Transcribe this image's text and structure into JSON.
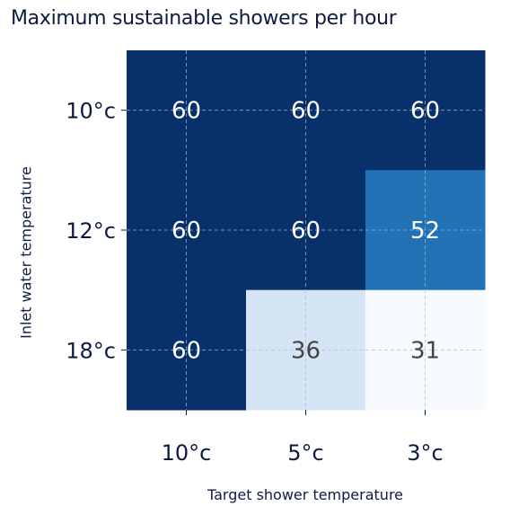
{
  "chart_data": {
    "type": "heatmap",
    "title": "Maximum sustainable showers per hour",
    "xlabel": "Target shower temperature",
    "ylabel": "Inlet water temperature",
    "x_categories": [
      "10°c",
      "5°c",
      "3°c"
    ],
    "y_categories": [
      "10°c",
      "12°c",
      "18°c"
    ],
    "values": [
      [
        60,
        60,
        60
      ],
      [
        60,
        60,
        52
      ],
      [
        60,
        36,
        31
      ]
    ],
    "value_range": [
      31,
      60
    ],
    "colormap": "Blues",
    "grid": true,
    "colors": {
      "60": "#08306b",
      "52": "#2171b5",
      "36": "#d6e5f5",
      "31": "#f7fbff"
    }
  }
}
